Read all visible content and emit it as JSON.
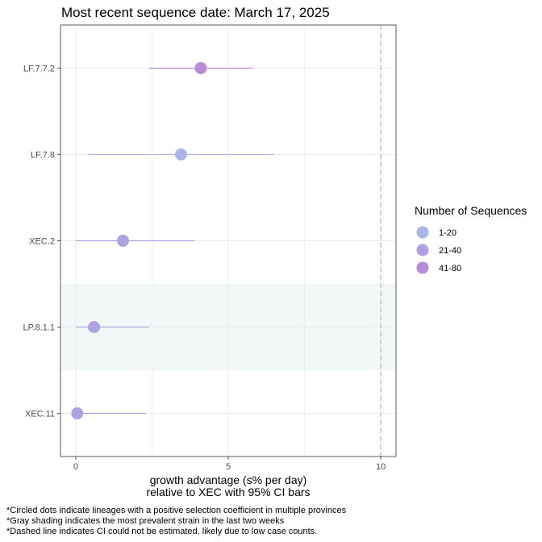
{
  "chart_data": {
    "type": "scatter",
    "title": "Most recent sequence date: March 17, 2025",
    "xlabel_line1": "growth advantage (s% per day)",
    "xlabel_line2": "relative to  XEC  with 95% CI bars",
    "xlim": [
      -0.5,
      10.5
    ],
    "xticks": [
      0,
      5,
      10
    ],
    "categories": [
      "LF.7.7.2",
      "LF.7.8",
      "XEC.2",
      "LP.8.1.1",
      "XEC.11"
    ],
    "points": [
      {
        "lineage": "LF.7.7.2",
        "value": 4.1,
        "ci_low": 2.4,
        "ci_high": 5.8,
        "group": "41-80"
      },
      {
        "lineage": "LF.7.8",
        "value": 3.45,
        "ci_low": 0.4,
        "ci_high": 6.5,
        "group": "1-20"
      },
      {
        "lineage": "XEC.2",
        "value": 1.55,
        "ci_low": 0.0,
        "ci_high": 3.9,
        "group": "21-40"
      },
      {
        "lineage": "LP.8.1.1",
        "value": 0.6,
        "ci_low": 0.0,
        "ci_high": 2.4,
        "group": "21-40"
      },
      {
        "lineage": "XEC.11",
        "value": 0.05,
        "ci_low": 0.0,
        "ci_high": 2.3,
        "group": "21-40"
      }
    ],
    "highlighted_lineage": "LP.8.1.1",
    "dashed_line_x": 10,
    "grid": true,
    "legend": {
      "title": "Number of Sequences",
      "placement": "right",
      "entries": [
        {
          "label": "1-20",
          "color": "#aab4e6"
        },
        {
          "label": "21-40",
          "color": "#b0a2e0"
        },
        {
          "label": "41-80",
          "color": "#b98ad6"
        }
      ]
    },
    "colors": {
      "highlight_band": "#f2f8f8",
      "dashed_line": "#b3b3b3",
      "gridline": "#ebebeb",
      "panel_border": "#333333"
    }
  },
  "footnotes": [
    "*Circled dots indicate lineages with a positive selection coefficient in multiple provinces",
    "*Gray shading indicates the most prevalent strain in the last two weeks",
    "*Dashed line indicates CI could not be estimated, likely due to low case counts."
  ]
}
